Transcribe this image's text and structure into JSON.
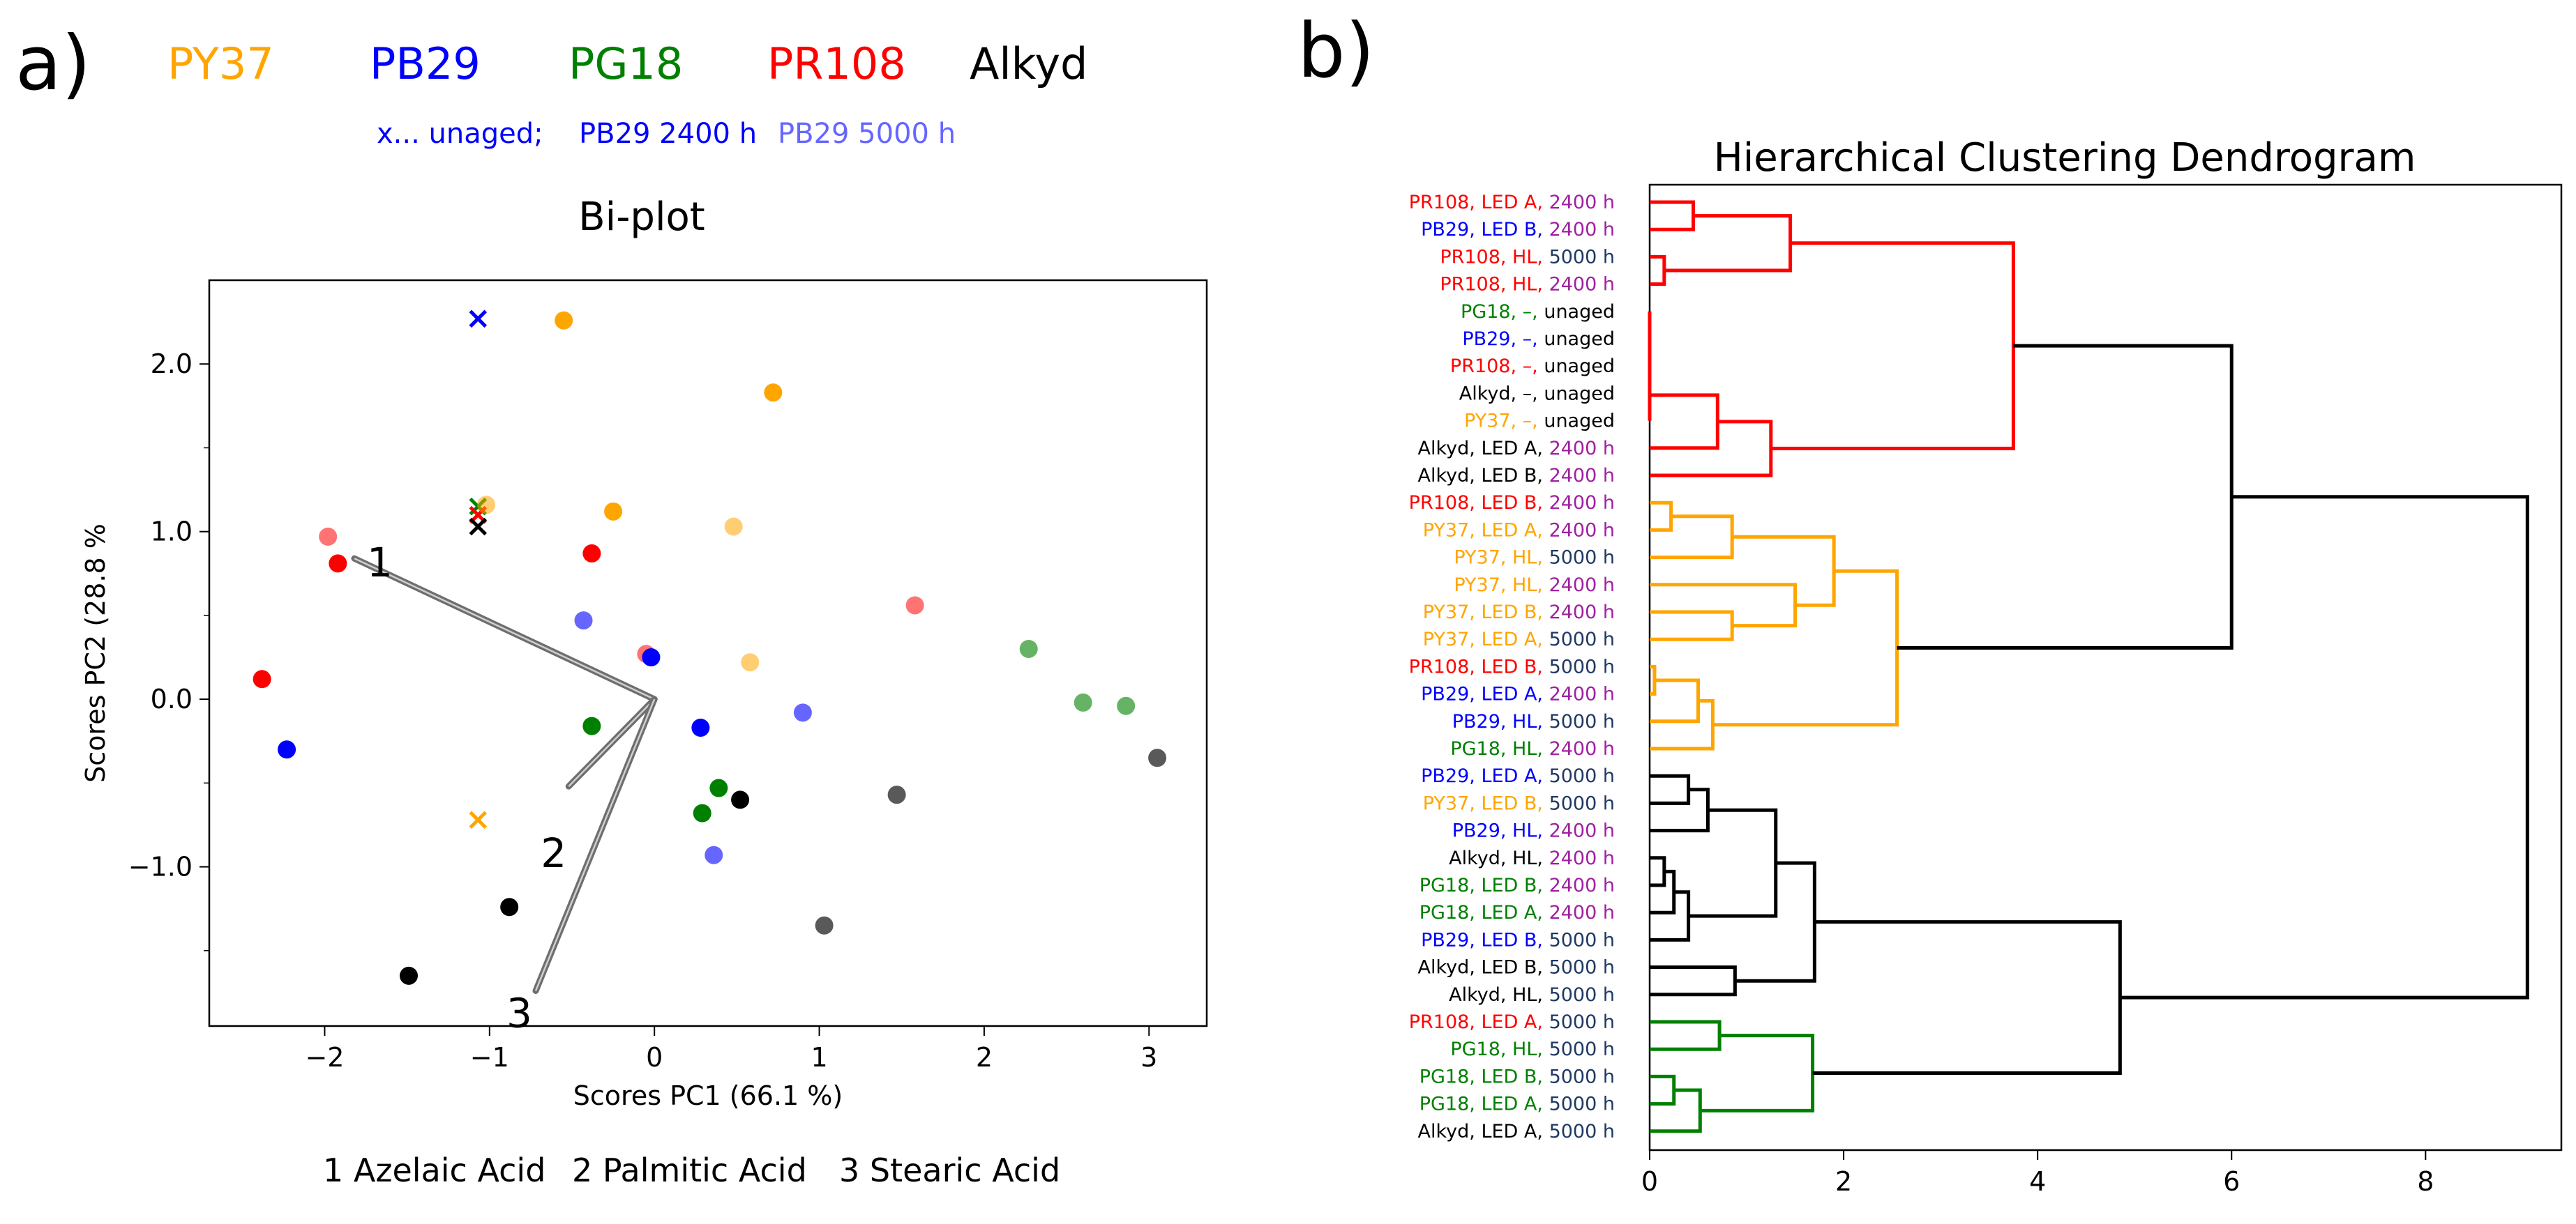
{
  "panel_a": {
    "label": "a)",
    "legend": [
      {
        "name": "PY37",
        "color": "#FFA500"
      },
      {
        "name": "PB29",
        "color": "#0000FF"
      },
      {
        "name": "PG18",
        "color": "#008000"
      },
      {
        "name": "PR108",
        "color": "#FF0000"
      },
      {
        "name": "Alkyd",
        "color": "#000000"
      }
    ],
    "sublegend": [
      {
        "text": "x... unaged;",
        "color": "#0000FF"
      },
      {
        "text": "PB29 2400 h",
        "color": "#0000FF"
      },
      {
        "text": "PB29 5000 h",
        "color": "#6666FF"
      }
    ],
    "footer": [
      {
        "num": "1",
        "name": "Azelaic Acid"
      },
      {
        "num": "2",
        "name": "Palmitic Acid"
      },
      {
        "num": "3",
        "name": "Stearic Acid"
      }
    ]
  },
  "panel_b": {
    "label": "b)"
  },
  "chart_data": [
    {
      "type": "scatter",
      "title": "Bi-plot",
      "xlabel": "Scores PC1 (66.1 %)",
      "ylabel": "Scores PC2 (28.8 %",
      "xlim": [
        -2.7,
        3.35
      ],
      "ylim": [
        -1.95,
        2.5
      ],
      "xticks": [
        -2,
        -1,
        0,
        1,
        2,
        3
      ],
      "xtick_labels": [
        "−2",
        "−1",
        "0",
        "1",
        "2",
        "3"
      ],
      "yticks": [
        -1.0,
        0.0,
        1.0,
        2.0
      ],
      "ytick_labels": [
        "−1.0",
        "0.0",
        "1.0",
        "2.0"
      ],
      "yminor_ticks": [
        -1.5,
        -0.5,
        0.5,
        1.5
      ],
      "colors": {
        "PY37": "#FFA500",
        "PB29": "#0000FF",
        "PG18": "#008000",
        "PR108": "#FF0000",
        "Alkyd": "#000000"
      },
      "points": [
        {
          "x": -1.07,
          "y": 2.27,
          "group": "PB29",
          "marker": "x",
          "alpha": 1.0
        },
        {
          "x": -1.07,
          "y": 1.15,
          "group": "PG18",
          "marker": "x",
          "alpha": 1.0
        },
        {
          "x": -1.07,
          "y": 1.1,
          "group": "PR108",
          "marker": "x",
          "alpha": 1.0
        },
        {
          "x": -1.07,
          "y": 1.03,
          "group": "Alkyd",
          "marker": "x",
          "alpha": 1.0
        },
        {
          "x": -1.07,
          "y": -0.72,
          "group": "PY37",
          "marker": "x",
          "alpha": 1.0
        },
        {
          "x": -0.55,
          "y": 2.26,
          "group": "PY37",
          "marker": "o",
          "alpha": 1.0
        },
        {
          "x": 0.72,
          "y": 1.83,
          "group": "PY37",
          "marker": "o",
          "alpha": 1.0
        },
        {
          "x": -1.02,
          "y": 1.16,
          "group": "PY37",
          "marker": "o",
          "alpha": 0.55
        },
        {
          "x": -0.25,
          "y": 1.12,
          "group": "PY37",
          "marker": "o",
          "alpha": 1.0
        },
        {
          "x": 0.48,
          "y": 1.03,
          "group": "PY37",
          "marker": "o",
          "alpha": 0.55
        },
        {
          "x": 0.58,
          "y": 0.22,
          "group": "PY37",
          "marker": "o",
          "alpha": 0.55
        },
        {
          "x": -1.98,
          "y": 0.97,
          "group": "PR108",
          "marker": "o",
          "alpha": 0.55
        },
        {
          "x": -1.92,
          "y": 0.81,
          "group": "PR108",
          "marker": "o",
          "alpha": 1.0
        },
        {
          "x": -0.38,
          "y": 0.87,
          "group": "PR108",
          "marker": "o",
          "alpha": 1.0
        },
        {
          "x": -0.05,
          "y": 0.27,
          "group": "PR108",
          "marker": "o",
          "alpha": 0.55
        },
        {
          "x": 1.58,
          "y": 0.56,
          "group": "PR108",
          "marker": "o",
          "alpha": 0.55
        },
        {
          "x": -2.38,
          "y": 0.12,
          "group": "PR108",
          "marker": "o",
          "alpha": 1.0
        },
        {
          "x": -0.43,
          "y": 0.47,
          "group": "PB29",
          "marker": "o",
          "alpha": 0.6
        },
        {
          "x": -0.02,
          "y": 0.25,
          "group": "PB29",
          "marker": "o",
          "alpha": 1.0
        },
        {
          "x": 0.28,
          "y": -0.17,
          "group": "PB29",
          "marker": "o",
          "alpha": 1.0
        },
        {
          "x": 0.9,
          "y": -0.08,
          "group": "PB29",
          "marker": "o",
          "alpha": 0.6
        },
        {
          "x": -2.23,
          "y": -0.3,
          "group": "PB29",
          "marker": "o",
          "alpha": 1.0
        },
        {
          "x": 0.36,
          "y": -0.93,
          "group": "PB29",
          "marker": "o",
          "alpha": 0.6
        },
        {
          "x": -0.38,
          "y": -0.16,
          "group": "PG18",
          "marker": "o",
          "alpha": 1.0
        },
        {
          "x": 0.39,
          "y": -0.53,
          "group": "PG18",
          "marker": "o",
          "alpha": 1.0
        },
        {
          "x": 0.29,
          "y": -0.68,
          "group": "PG18",
          "marker": "o",
          "alpha": 1.0
        },
        {
          "x": 2.27,
          "y": 0.3,
          "group": "PG18",
          "marker": "o",
          "alpha": 0.6
        },
        {
          "x": 2.6,
          "y": -0.02,
          "group": "PG18",
          "marker": "o",
          "alpha": 0.6
        },
        {
          "x": 2.86,
          "y": -0.04,
          "group": "PG18",
          "marker": "o",
          "alpha": 0.6
        },
        {
          "x": 0.52,
          "y": -0.6,
          "group": "Alkyd",
          "marker": "o",
          "alpha": 1.0
        },
        {
          "x": 1.47,
          "y": -0.57,
          "group": "Alkyd",
          "marker": "o",
          "alpha": 0.65
        },
        {
          "x": 3.05,
          "y": -0.35,
          "group": "Alkyd",
          "marker": "o",
          "alpha": 0.65
        },
        {
          "x": 1.03,
          "y": -1.35,
          "group": "Alkyd",
          "marker": "o",
          "alpha": 0.65
        },
        {
          "x": -0.88,
          "y": -1.24,
          "group": "Alkyd",
          "marker": "o",
          "alpha": 1.0
        },
        {
          "x": -1.49,
          "y": -1.65,
          "group": "Alkyd",
          "marker": "o",
          "alpha": 1.0
        }
      ],
      "loadings": [
        {
          "label": "1",
          "x": -1.82,
          "y": 0.84
        },
        {
          "label": "2",
          "x": -0.52,
          "y": -0.52
        },
        {
          "label": "3",
          "x": -0.72,
          "y": -1.74
        }
      ]
    },
    {
      "type": "dendrogram",
      "title": "Hierarchical Clustering Dendrogram",
      "orientation": "left",
      "xlim": [
        0,
        9.4
      ],
      "xticks": [
        0,
        2,
        4,
        6,
        8
      ],
      "time_colors": {
        "2400 h": "#A020A0",
        "5000 h": "#1F3864",
        "unaged": "#000000"
      },
      "sample_colors": {
        "PY37": "#FFA500",
        "PB29": "#0000FF",
        "PG18": "#008000",
        "PR108": "#FF0000",
        "Alkyd": "#000000"
      },
      "leaves": [
        {
          "pigment": "PR108",
          "condition": "LED A",
          "time": "2400 h"
        },
        {
          "pigment": "PB29",
          "condition": "LED B",
          "time": "2400 h"
        },
        {
          "pigment": "PR108",
          "condition": "HL",
          "time": "5000 h"
        },
        {
          "pigment": "PR108",
          "condition": "HL",
          "time": "2400 h"
        },
        {
          "pigment": "PG18",
          "condition": "–",
          "time": "unaged"
        },
        {
          "pigment": "PB29",
          "condition": "–",
          "time": "unaged"
        },
        {
          "pigment": "PR108",
          "condition": "–",
          "time": "unaged"
        },
        {
          "pigment": "Alkyd",
          "condition": "–",
          "time": "unaged"
        },
        {
          "pigment": "PY37",
          "condition": "–",
          "time": "unaged"
        },
        {
          "pigment": "Alkyd",
          "condition": "LED A",
          "time": "2400 h"
        },
        {
          "pigment": "Alkyd",
          "condition": "LED B",
          "time": "2400 h"
        },
        {
          "pigment": "PR108",
          "condition": "LED B",
          "time": "2400 h"
        },
        {
          "pigment": "PY37",
          "condition": "LED A",
          "time": "2400 h"
        },
        {
          "pigment": "PY37",
          "condition": "HL",
          "time": "5000 h"
        },
        {
          "pigment": "PY37",
          "condition": "HL",
          "time": "2400 h"
        },
        {
          "pigment": "PY37",
          "condition": "LED B",
          "time": "2400 h"
        },
        {
          "pigment": "PY37",
          "condition": "LED A",
          "time": "5000 h"
        },
        {
          "pigment": "PR108",
          "condition": "LED B",
          "time": "5000 h"
        },
        {
          "pigment": "PB29",
          "condition": "LED A",
          "time": "2400 h"
        },
        {
          "pigment": "PB29",
          "condition": "HL",
          "time": "5000 h"
        },
        {
          "pigment": "PG18",
          "condition": "HL",
          "time": "2400 h"
        },
        {
          "pigment": "PB29",
          "condition": "LED A",
          "time": "5000 h"
        },
        {
          "pigment": "PY37",
          "condition": "LED B",
          "time": "5000 h"
        },
        {
          "pigment": "PB29",
          "condition": "HL",
          "time": "2400 h"
        },
        {
          "pigment": "Alkyd",
          "condition": "HL",
          "time": "2400 h"
        },
        {
          "pigment": "PG18",
          "condition": "LED  B",
          "time": "2400 h"
        },
        {
          "pigment": "PG18",
          "condition": "LED  A",
          "time": "2400 h"
        },
        {
          "pigment": "PB29",
          "condition": "LED B",
          "time": "5000 h"
        },
        {
          "pigment": "Alkyd",
          "condition": "LED B",
          "time": "5000 h"
        },
        {
          "pigment": "Alkyd",
          "condition": "HL",
          "time": "5000 h"
        },
        {
          "pigment": "PR108",
          "condition": "LED A",
          "time": "5000 h"
        },
        {
          "pigment": "PG18",
          "condition": "HL",
          "time": "5000 h"
        },
        {
          "pigment": "PG18",
          "condition": "LED B",
          "time": "5000 h"
        },
        {
          "pigment": "PG18",
          "condition": "LED A",
          "time": "5000 h"
        },
        {
          "pigment": "Alkyd",
          "condition": "LED A",
          "time": "5000 h"
        }
      ],
      "links": [
        {
          "a": 0,
          "b": 1,
          "h": 0.45,
          "color": "#FF0000"
        },
        {
          "a": 2,
          "b": 3,
          "h": 0.15,
          "color": "#FF0000"
        },
        {
          "a": 35,
          "b": 36,
          "h": 1.45,
          "color": "#FF0000"
        },
        {
          "a": 4,
          "b": 5,
          "h": 0.0,
          "color": "#FF0000"
        },
        {
          "a": 38,
          "b": 6,
          "h": 0.0,
          "color": "#FF0000"
        },
        {
          "a": 39,
          "b": 7,
          "h": 0.0,
          "color": "#FF0000"
        },
        {
          "a": 40,
          "b": 8,
          "h": 0.0,
          "color": "#FF0000"
        },
        {
          "a": 41,
          "b": 9,
          "h": 0.7,
          "color": "#FF0000"
        },
        {
          "a": 42,
          "b": 10,
          "h": 1.25,
          "color": "#FF0000"
        },
        {
          "a": 37,
          "b": 43,
          "h": 3.75,
          "color": "#FF0000"
        },
        {
          "a": 11,
          "b": 12,
          "h": 0.22,
          "color": "#FFA500"
        },
        {
          "a": 45,
          "b": 13,
          "h": 0.85,
          "color": "#FFA500"
        },
        {
          "a": 15,
          "b": 16,
          "h": 0.85,
          "color": "#FFA500"
        },
        {
          "a": 14,
          "b": 47,
          "h": 1.5,
          "color": "#FFA500"
        },
        {
          "a": 46,
          "b": 48,
          "h": 1.9,
          "color": "#FFA500"
        },
        {
          "a": 17,
          "b": 18,
          "h": 0.05,
          "color": "#FFA500"
        },
        {
          "a": 50,
          "b": 19,
          "h": 0.5,
          "color": "#FFA500"
        },
        {
          "a": 51,
          "b": 20,
          "h": 0.65,
          "color": "#FFA500"
        },
        {
          "a": 49,
          "b": 52,
          "h": 2.55,
          "color": "#FFA500"
        },
        {
          "a": 44,
          "b": 53,
          "h": 6.0,
          "color": "#000000"
        },
        {
          "a": 21,
          "b": 22,
          "h": 0.4,
          "color": "#000000"
        },
        {
          "a": 55,
          "b": 23,
          "h": 0.6,
          "color": "#000000"
        },
        {
          "a": 24,
          "b": 25,
          "h": 0.15,
          "color": "#000000"
        },
        {
          "a": 57,
          "b": 26,
          "h": 0.25,
          "color": "#000000"
        },
        {
          "a": 58,
          "b": 27,
          "h": 0.4,
          "color": "#000000"
        },
        {
          "a": 56,
          "b": 59,
          "h": 1.3,
          "color": "#000000"
        },
        {
          "a": 28,
          "b": 29,
          "h": 0.88,
          "color": "#000000"
        },
        {
          "a": 60,
          "b": 61,
          "h": 1.7,
          "color": "#000000"
        },
        {
          "a": 30,
          "b": 31,
          "h": 0.72,
          "color": "#008000"
        },
        {
          "a": 32,
          "b": 33,
          "h": 0.25,
          "color": "#008000"
        },
        {
          "a": 64,
          "b": 34,
          "h": 0.52,
          "color": "#008000"
        },
        {
          "a": 63,
          "b": 65,
          "h": 1.68,
          "color": "#008000"
        },
        {
          "a": 62,
          "b": 66,
          "h": 4.85,
          "color": "#000000"
        },
        {
          "a": 54,
          "b": 67,
          "h": 9.05,
          "color": "#000000"
        }
      ]
    }
  ]
}
